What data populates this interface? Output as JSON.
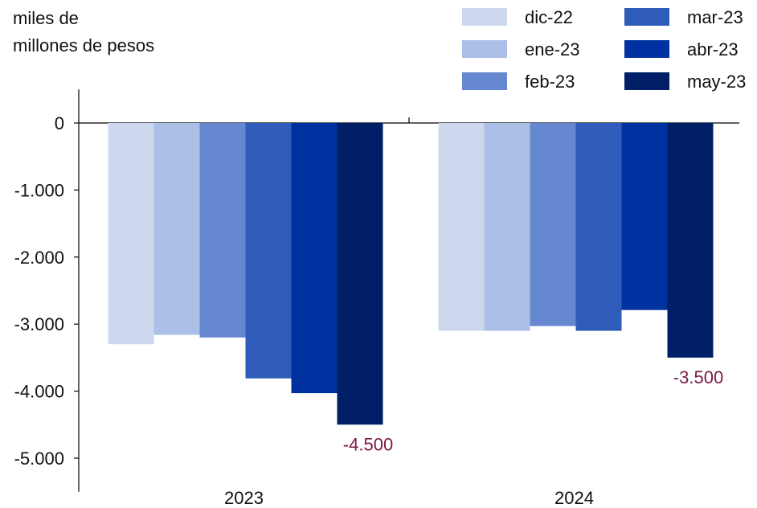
{
  "chart_data": {
    "type": "bar",
    "unit_label_lines": [
      "miles de",
      "millones de pesos"
    ],
    "categories": [
      "2023",
      "2024"
    ],
    "series": [
      {
        "name": "dic-22",
        "color": "#cdd8ef",
        "values": [
          -3300,
          -3100
        ]
      },
      {
        "name": "ene-23",
        "color": "#acbfe6",
        "values": [
          -3160,
          -3100
        ]
      },
      {
        "name": "feb-23",
        "color": "#6688d0",
        "values": [
          -3200,
          -3030
        ]
      },
      {
        "name": "mar-23",
        "color": "#2f5cbb",
        "values": [
          -3810,
          -3100
        ]
      },
      {
        "name": "abr-23",
        "color": "#0031a0",
        "values": [
          -4030,
          -2790
        ]
      },
      {
        "name": "may-23",
        "color": "#001f66",
        "values": [
          -4500,
          -3500
        ]
      }
    ],
    "data_labels": [
      {
        "series": "may-23",
        "category": "2023",
        "text": "-4.500",
        "color": "#7a1a45"
      },
      {
        "series": "may-23",
        "category": "2024",
        "text": "-3.500",
        "color": "#7a1a45"
      }
    ],
    "yticks": [
      0,
      -1000,
      -2000,
      -3000,
      -4000,
      -5000
    ],
    "ytick_labels": [
      "0",
      "-1.000",
      "-2.000",
      "-3.000",
      "-4.000",
      "-5.000"
    ],
    "ylim": [
      -5500,
      500
    ],
    "legend_position": "top-right",
    "grid": false
  }
}
